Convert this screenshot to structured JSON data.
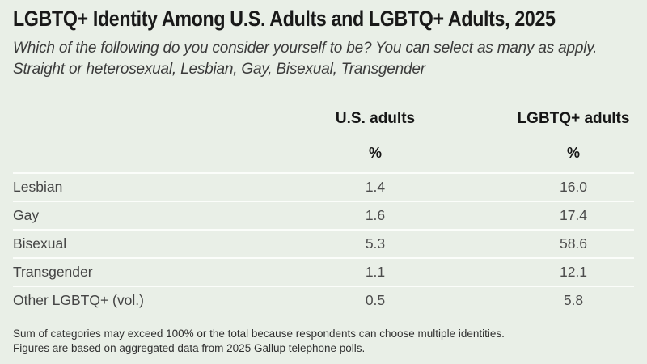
{
  "colors": {
    "background": "#e9efe7",
    "row_divider": "#fbfdfa",
    "heading_text": "#191919",
    "body_text": "#4c4c4c"
  },
  "header": {
    "title": "LGBTQ+ Identity Among U.S. Adults and LGBTQ+ Adults, 2025",
    "subtitle": "Which of the following do you consider yourself to be? You can select as many as apply. Straight or heterosexual, Lesbian, Gay, Bisexual, Transgender"
  },
  "table": {
    "columns": [
      {
        "label": "U.S. adults",
        "unit": "%"
      },
      {
        "label": "LGBTQ+ adults",
        "unit": "%"
      }
    ],
    "rows": [
      {
        "label": "Lesbian",
        "us": "1.4",
        "lgbtq": "16.0"
      },
      {
        "label": "Gay",
        "us": "1.6",
        "lgbtq": "17.4"
      },
      {
        "label": "Bisexual",
        "us": "5.3",
        "lgbtq": "58.6"
      },
      {
        "label": "Transgender",
        "us": "1.1",
        "lgbtq": "12.1"
      },
      {
        "label": "Other LGBTQ+ (vol.)",
        "us": "0.5",
        "lgbtq": "5.8"
      }
    ]
  },
  "footer": {
    "line1": "Sum of categories may exceed 100% or the total because respondents can choose multiple identities.",
    "line2": "Figures are based on aggregated data from 2025 Gallup telephone polls."
  },
  "chart_data": {
    "type": "table",
    "title": "LGBTQ+ Identity Among U.S. Adults and LGBTQ+ Adults, 2025",
    "subtitle": "Which of the following do you consider yourself to be? You can select as many as apply. Straight or heterosexual, Lesbian, Gay, Bisexual, Transgender",
    "categories": [
      "Lesbian",
      "Gay",
      "Bisexual",
      "Transgender",
      "Other LGBTQ+ (vol.)"
    ],
    "series": [
      {
        "name": "U.S. adults",
        "unit": "%",
        "values": [
          1.4,
          1.6,
          5.3,
          1.1,
          0.5
        ]
      },
      {
        "name": "LGBTQ+ adults",
        "unit": "%",
        "values": [
          16.0,
          17.4,
          58.6,
          12.1,
          5.8
        ]
      }
    ],
    "footnote": "Sum of categories may exceed 100% or the total because respondents can choose multiple identities. Figures are based on aggregated data from 2025 Gallup telephone polls."
  }
}
